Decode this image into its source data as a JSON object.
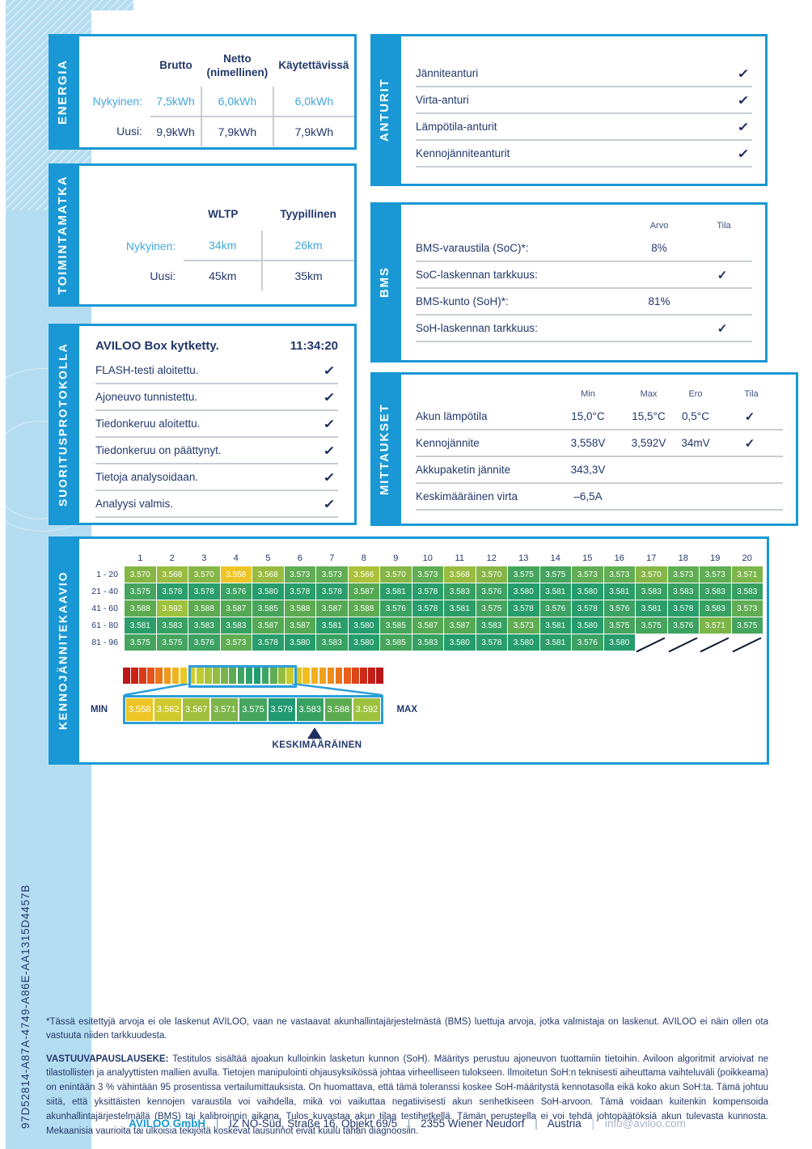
{
  "page": {
    "report_id": "97D52814-A87A-4749-A86E-AA1315D4457B",
    "accent_blue": "#1a98d5",
    "navy_text": "#22386b",
    "highlight_blue_text": "#44a8db",
    "strip_blue": "#b5ddf1"
  },
  "energia": {
    "section_label": "ENERGIA",
    "col_headers": [
      "Brutto",
      "Netto\n(nimellinen)",
      "Käytettävissä"
    ],
    "rows": [
      {
        "label": "Nykyinen:",
        "values": [
          "7,5kWh",
          "6,0kWh",
          "6,0kWh"
        ]
      },
      {
        "label": "Uusi:",
        "values": [
          "9,9kWh",
          "7,9kWh",
          "7,9kWh"
        ]
      }
    ]
  },
  "toimintamatka": {
    "section_label": "TOIMINTAMATKA",
    "col_headers": [
      "WLTP",
      "Tyypillinen"
    ],
    "rows": [
      {
        "label": "Nykyinen:",
        "values": [
          "34km",
          "26km"
        ]
      },
      {
        "label": "Uusi:",
        "values": [
          "45km",
          "35km"
        ]
      }
    ]
  },
  "suoritusprotokolla": {
    "section_label": "SUORITUSPROTOKOLLA",
    "title": "AVILOO Box kytketty.",
    "time": "11:34:20",
    "steps": [
      "FLASH-testi aloitettu.",
      "Ajoneuvo tunnistettu.",
      "Tiedonkeruu aloitettu.",
      "Tiedonkeruu on päättynyt.",
      "Tietoja analysoidaan.",
      "Analyysi valmis."
    ]
  },
  "anturit": {
    "section_label": "ANTURIT",
    "items": [
      "Jänniteanturi",
      "Virta-anturi",
      "Lämpötila-anturit",
      "Kennojänniteanturit"
    ]
  },
  "bms": {
    "section_label": "BMS",
    "col_headers": {
      "arvo": "Arvo",
      "tila": "Tila"
    },
    "rows": [
      {
        "label": "BMS-varaustila (SoC)*:",
        "value": "8%"
      },
      {
        "label": "SoC-laskennan tarkkuus:",
        "value": ""
      },
      {
        "label": "BMS-kunto (SoH)*:",
        "value": "81%"
      },
      {
        "label": "SoH-laskennan tarkkuus:",
        "value": ""
      }
    ]
  },
  "mittaukset": {
    "section_label": "MITTAUKSET",
    "col_headers": {
      "min": "Min",
      "max": "Max",
      "ero": "Ero",
      "tila": "Tila"
    },
    "rows": [
      {
        "label": "Akun lämpötila",
        "min": "15,0°C",
        "max": "15,5°C",
        "ero": "0,5°C",
        "check": true
      },
      {
        "label": "Kennojännite",
        "min": "3,558V",
        "max": "3,592V",
        "ero": "34mV",
        "check": true
      },
      {
        "label": "Akkupaketin jännite",
        "min": "343,3V",
        "max": "",
        "ero": "",
        "check": false
      },
      {
        "label": "Keskimääräinen virta",
        "min": "–6,5A",
        "max": "",
        "ero": "",
        "check": false
      }
    ]
  },
  "chart_data": {
    "type": "heatmap",
    "title": "KENNOJÄNNITEKAAVIO",
    "section_label": "KENNOJÄNNITEKAAVIO",
    "columns": [
      "1",
      "2",
      "3",
      "4",
      "5",
      "6",
      "7",
      "8",
      "9",
      "10",
      "11",
      "12",
      "13",
      "14",
      "15",
      "16",
      "17",
      "18",
      "19",
      "20"
    ],
    "row_labels": [
      "1 - 20",
      "21 - 40",
      "41 - 60",
      "61 - 80",
      "81 - 96"
    ],
    "values": [
      [
        "3.570",
        "3.568",
        "3.570",
        "3.558",
        "3.568",
        "3.573",
        "3.573",
        "3.566",
        "3.570",
        "3.573",
        "3.568",
        "3.570",
        "3.575",
        "3.575",
        "3.573",
        "3.573",
        "3.570",
        "3.573",
        "3.573",
        "3.571"
      ],
      [
        "3.575",
        "3.578",
        "3.578",
        "3.576",
        "3.580",
        "3.578",
        "3.578",
        "3.587",
        "3.581",
        "3.578",
        "3.583",
        "3.576",
        "3.580",
        "3.581",
        "3.580",
        "3.581",
        "3.583",
        "3.583",
        "3.583",
        "3.583"
      ],
      [
        "3.588",
        "3.592",
        "3.588",
        "3.587",
        "3.585",
        "3.588",
        "3.587",
        "3.588",
        "3.576",
        "3.578",
        "3.581",
        "3.575",
        "3.578",
        "3.576",
        "3.578",
        "3.576",
        "3.581",
        "3.578",
        "3.583",
        "3.573"
      ],
      [
        "3.581",
        "3.583",
        "3.583",
        "3.583",
        "3.587",
        "3.587",
        "3.581",
        "3.580",
        "3.585",
        "3.587",
        "3.587",
        "3.583",
        "3.573",
        "3.581",
        "3.580",
        "3.575",
        "3.575",
        "3.576",
        "3.571",
        "3.575"
      ],
      [
        "3.575",
        "3.575",
        "3.576",
        "3.573",
        "3.578",
        "3.580",
        "3.583",
        "3.580",
        "3.585",
        "3.583",
        "3.580",
        "3.578",
        "3.580",
        "3.581",
        "3.576",
        "3.580",
        null,
        null,
        null,
        null
      ]
    ],
    "min": 3.558,
    "max": 3.592,
    "average": 3.579,
    "legend_values": [
      "3.558",
      "3.562",
      "3.567",
      "3.571",
      "3.575",
      "3.579",
      "3.583",
      "3.588",
      "3.592"
    ],
    "legend_min_label": "MIN",
    "legend_max_label": "MAX",
    "average_label": "KESKIMÄÄRÄINEN"
  },
  "footer": {
    "footnote": "*Tässä esitettyjä arvoja ei ole laskenut AVILOO, vaan ne vastaavat akunhallintajärjestelmästä (BMS) luettuja arvoja, jotka valmistaja on laskenut. AVILOO ei näin ollen ota vastuuta niiden tarkkuudesta.",
    "disclaimer_title": "VASTUUVAPAUSLAUSEKE:",
    "disclaimer_body": " Testitulos sisältää ajoakun kulloinkin lasketun kunnon (SoH). Määritys perustuu ajoneuvon tuottamiin tietoihin. Aviloon algoritmit arvioivat ne tilastollisten ja analyyttisten mallien avulla. Tietojen manipulointi ohjausyksikössä johtaa virheelliseen tulokseen. Ilmoitetun SoH:n teknisesti aiheuttama vaihteluväli (poikkeama) on enintään 3 % vähintään 95 prosentissa vertailumittauksista. On huomattava, että tämä toleranssi koskee SoH-määritystä kennotasolla eikä koko akun SoH:ta. Tämä johtuu siitä, että yksittäisten kennojen varaustila voi vaihdella, mikä voi vaikuttaa negatiivisesti akun senhetkiseen SoH-arvoon. Tämä voidaan kuitenkin kompensoida akunhallintajärjestelmällä (BMS) tai kalibroinnin aikana. Tulos kuvastaa akun tilaa testihetkellä. Tämän perusteella ei voi tehdä johtopäätöksiä akun tulevasta kunnosta. Mekaanisia vaurioita tai ulkoisia tekijöitä koskevat lausunnot eivät kuulu tähän diagnoosiin.",
    "company": "AVILOO GmbH",
    "address": "IZ NÖ-Süd, Straße 16, Objekt 69/5",
    "city": "2355 Wiener Neudorf",
    "country": "Austria",
    "email": "info@aviloo.com",
    "separator": "|"
  },
  "check_glyph": "✓"
}
